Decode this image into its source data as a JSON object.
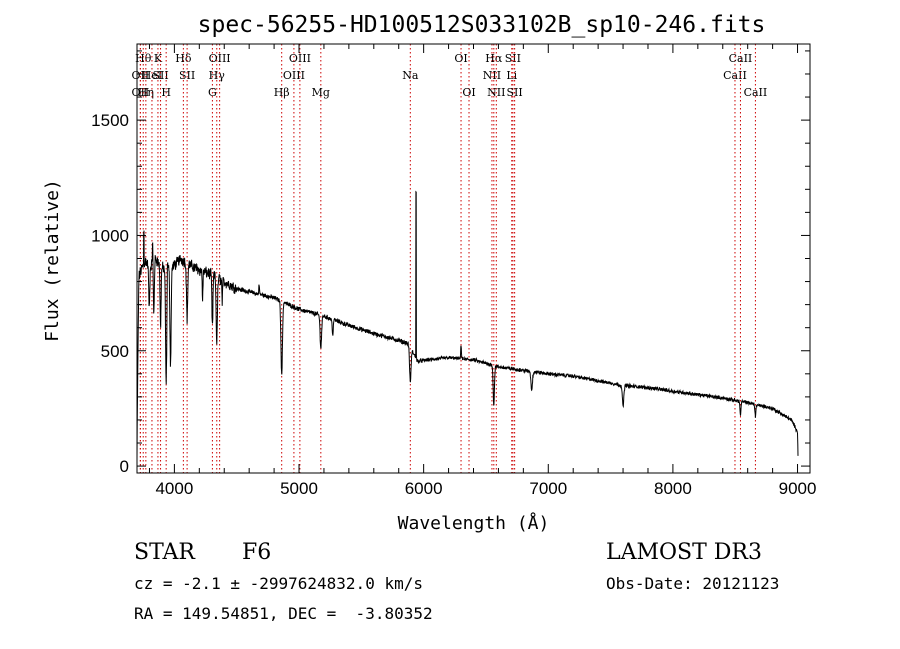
{
  "chart_data": {
    "type": "line",
    "title": "spec-56255-HD100512S033102B_sp10-246.fits",
    "xlabel": "Wavelength (Å)",
    "ylabel": "Flux (relative)",
    "xlim": [
      3700,
      9100
    ],
    "ylim": [
      -30,
      1830
    ],
    "x_ticks": [
      4000,
      5000,
      6000,
      7000,
      8000,
      9000
    ],
    "y_ticks": [
      0,
      500,
      1000,
      1500
    ],
    "grid": false,
    "line_color": "#000000",
    "marker_color": "#cc0000",
    "anchors": [
      {
        "x": 3700,
        "y": 30
      },
      {
        "x": 3705,
        "y": 350
      },
      {
        "x": 3715,
        "y": 820
      },
      {
        "x": 3740,
        "y": 860
      },
      {
        "x": 3770,
        "y": 890
      },
      {
        "x": 3800,
        "y": 860
      },
      {
        "x": 3850,
        "y": 900
      },
      {
        "x": 3900,
        "y": 860
      },
      {
        "x": 3950,
        "y": 860
      },
      {
        "x": 4000,
        "y": 870
      },
      {
        "x": 4050,
        "y": 900
      },
      {
        "x": 4100,
        "y": 880
      },
      {
        "x": 4200,
        "y": 850
      },
      {
        "x": 4300,
        "y": 830
      },
      {
        "x": 4400,
        "y": 800
      },
      {
        "x": 4500,
        "y": 770
      },
      {
        "x": 4600,
        "y": 755
      },
      {
        "x": 4800,
        "y": 730
      },
      {
        "x": 5000,
        "y": 680
      },
      {
        "x": 5200,
        "y": 650
      },
      {
        "x": 5400,
        "y": 610
      },
      {
        "x": 5600,
        "y": 575
      },
      {
        "x": 5800,
        "y": 545
      },
      {
        "x": 5880,
        "y": 530
      },
      {
        "x": 5950,
        "y": 455
      },
      {
        "x": 6200,
        "y": 470
      },
      {
        "x": 6400,
        "y": 460
      },
      {
        "x": 6600,
        "y": 430
      },
      {
        "x": 6800,
        "y": 415
      },
      {
        "x": 7000,
        "y": 400
      },
      {
        "x": 7200,
        "y": 390
      },
      {
        "x": 7400,
        "y": 370
      },
      {
        "x": 7600,
        "y": 350
      },
      {
        "x": 7800,
        "y": 340
      },
      {
        "x": 8000,
        "y": 325
      },
      {
        "x": 8200,
        "y": 310
      },
      {
        "x": 8400,
        "y": 295
      },
      {
        "x": 8600,
        "y": 275
      },
      {
        "x": 8800,
        "y": 250
      },
      {
        "x": 8950,
        "y": 200
      },
      {
        "x": 9000,
        "y": 150
      },
      {
        "x": 9005,
        "y": 20
      }
    ],
    "absorption_features": [
      {
        "x": 3934,
        "depth": 500,
        "width": 5
      },
      {
        "x": 3969,
        "depth": 420,
        "width": 5
      },
      {
        "x": 3889,
        "depth": 260,
        "width": 4
      },
      {
        "x": 3835,
        "depth": 230,
        "width": 4
      },
      {
        "x": 3798,
        "depth": 180,
        "width": 4
      },
      {
        "x": 4102,
        "depth": 240,
        "width": 5
      },
      {
        "x": 4226,
        "depth": 120,
        "width": 3
      },
      {
        "x": 4305,
        "depth": 230,
        "width": 4
      },
      {
        "x": 4340,
        "depth": 280,
        "width": 5
      },
      {
        "x": 4384,
        "depth": 90,
        "width": 3
      },
      {
        "x": 4861,
        "depth": 320,
        "width": 6
      },
      {
        "x": 5175,
        "depth": 140,
        "width": 6
      },
      {
        "x": 5270,
        "depth": 70,
        "width": 4
      },
      {
        "x": 5893,
        "depth": 150,
        "width": 6
      },
      {
        "x": 6563,
        "depth": 170,
        "width": 5
      },
      {
        "x": 6867,
        "depth": 80,
        "width": 6
      },
      {
        "x": 7600,
        "depth": 90,
        "width": 6
      },
      {
        "x": 8542,
        "depth": 60,
        "width": 4
      },
      {
        "x": 8662,
        "depth": 50,
        "width": 4
      }
    ],
    "emission_spikes": [
      {
        "x": 3755,
        "height": 230,
        "width": 1
      },
      {
        "x": 3825,
        "height": 110,
        "width": 2
      },
      {
        "x": 3945,
        "height": 80,
        "width": 2
      },
      {
        "x": 4680,
        "height": 40,
        "width": 3
      },
      {
        "x": 5939,
        "height": 1200,
        "width": 1
      },
      {
        "x": 6300,
        "height": 60,
        "width": 3
      }
    ],
    "line_markers": [
      {
        "x": 3727,
        "label": "OII",
        "row": 1
      },
      {
        "x": 3727,
        "label": "OII",
        "row": 2
      },
      {
        "x": 3750,
        "label": "Hθ",
        "row": 0
      },
      {
        "x": 3771,
        "label": "Hη",
        "row": 2
      },
      {
        "x": 3820,
        "label": "HeI",
        "row": 1
      },
      {
        "x": 3868,
        "label": "K",
        "row": 0
      },
      {
        "x": 3889,
        "label": "SII",
        "row": 1
      },
      {
        "x": 3934,
        "label": "H",
        "row": 2
      },
      {
        "x": 4072,
        "label": "Hδ",
        "row": 0
      },
      {
        "x": 4102,
        "label": "SII",
        "row": 1
      },
      {
        "x": 4305,
        "label": "G",
        "row": 2
      },
      {
        "x": 4340,
        "label": "Hγ",
        "row": 1
      },
      {
        "x": 4363,
        "label": "OIII",
        "row": 0
      },
      {
        "x": 4861,
        "label": "Hβ",
        "row": 2
      },
      {
        "x": 4959,
        "label": "OIII",
        "row": 1
      },
      {
        "x": 5007,
        "label": "OIII",
        "row": 0
      },
      {
        "x": 5175,
        "label": "Mg",
        "row": 2
      },
      {
        "x": 5893,
        "label": "Na",
        "row": 1
      },
      {
        "x": 6300,
        "label": "OI",
        "row": 0
      },
      {
        "x": 6364,
        "label": "OI",
        "row": 2
      },
      {
        "x": 6548,
        "label": "NII",
        "row": 1
      },
      {
        "x": 6563,
        "label": "Hα",
        "row": 0
      },
      {
        "x": 6583,
        "label": "NII",
        "row": 2
      },
      {
        "x": 6707,
        "label": "Li",
        "row": 1
      },
      {
        "x": 6716,
        "label": "SII",
        "row": 0
      },
      {
        "x": 6730,
        "label": "SII",
        "row": 2
      },
      {
        "x": 8498,
        "label": "CaII",
        "row": 1
      },
      {
        "x": 8542,
        "label": "CaII",
        "row": 0
      },
      {
        "x": 8662,
        "label": "CaII",
        "row": 2
      }
    ]
  },
  "info": {
    "object_class": "STAR",
    "subclass": "F6",
    "survey": "LAMOST DR3",
    "redshift_line": "cz = -2.1 ± -2997624832.0 km/s",
    "obs_date": "Obs-Date: 20121123",
    "coords_line": "RA = 149.54851, DEC =  -3.80352"
  }
}
